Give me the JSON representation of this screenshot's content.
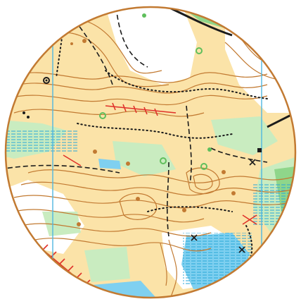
{
  "map": {
    "kind": "orienteering-map-circular-excerpt",
    "colors": {
      "background": "#ffffff",
      "open_land": "#ffffff",
      "rough_open": "#fbe3a8",
      "forest": "#ffffff",
      "green_light": "#c9ecc0",
      "green_medium": "#8fd68a",
      "green_dark": "#5fbf5c",
      "water": "#7fd0f0",
      "marsh": "#2aa7d8",
      "contour": "#c27a32",
      "contour_index": "#b06a26",
      "path": "#1b1b1b",
      "fence_red": "#e0312a",
      "border": "#c27a32",
      "magnetic_north": "#4fb7e0"
    },
    "symbols": {
      "contour_lines": "contour",
      "dashed_tracks": "path",
      "dotted_paths": "path",
      "water_bodies": "water",
      "marsh_hatching": "marsh",
      "red_fences": "forbidden",
      "green_circles": "green-feature",
      "brown_dots": "knoll",
      "black_crosses": "special-man-made",
      "north_lines": "magnetic-north"
    }
  }
}
